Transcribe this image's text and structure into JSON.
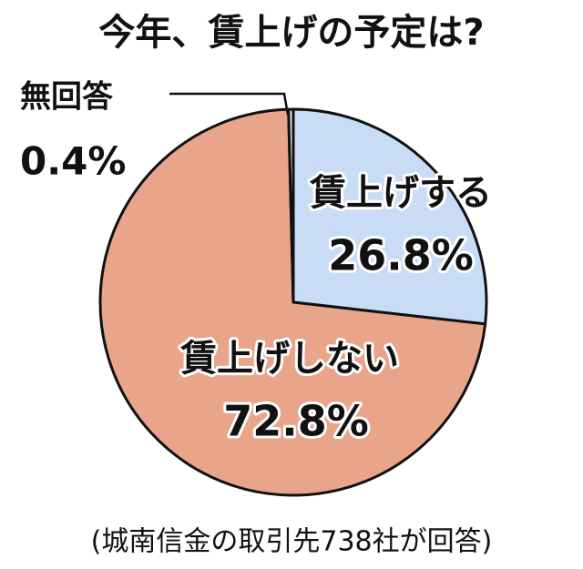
{
  "chart_data": {
    "type": "pie",
    "title": "今年、賃上げの予定は?",
    "categories": [
      "賃上げする",
      "賃上げしない",
      "無回答"
    ],
    "values": [
      26.8,
      72.8,
      0.4
    ],
    "value_labels": [
      "26.8%",
      "72.8%",
      "0.4%"
    ],
    "colors": [
      "#c9dcf5",
      "#e8a58a",
      "#dcdcdc"
    ],
    "source": "(城南信金の取引先738社が回答)"
  }
}
